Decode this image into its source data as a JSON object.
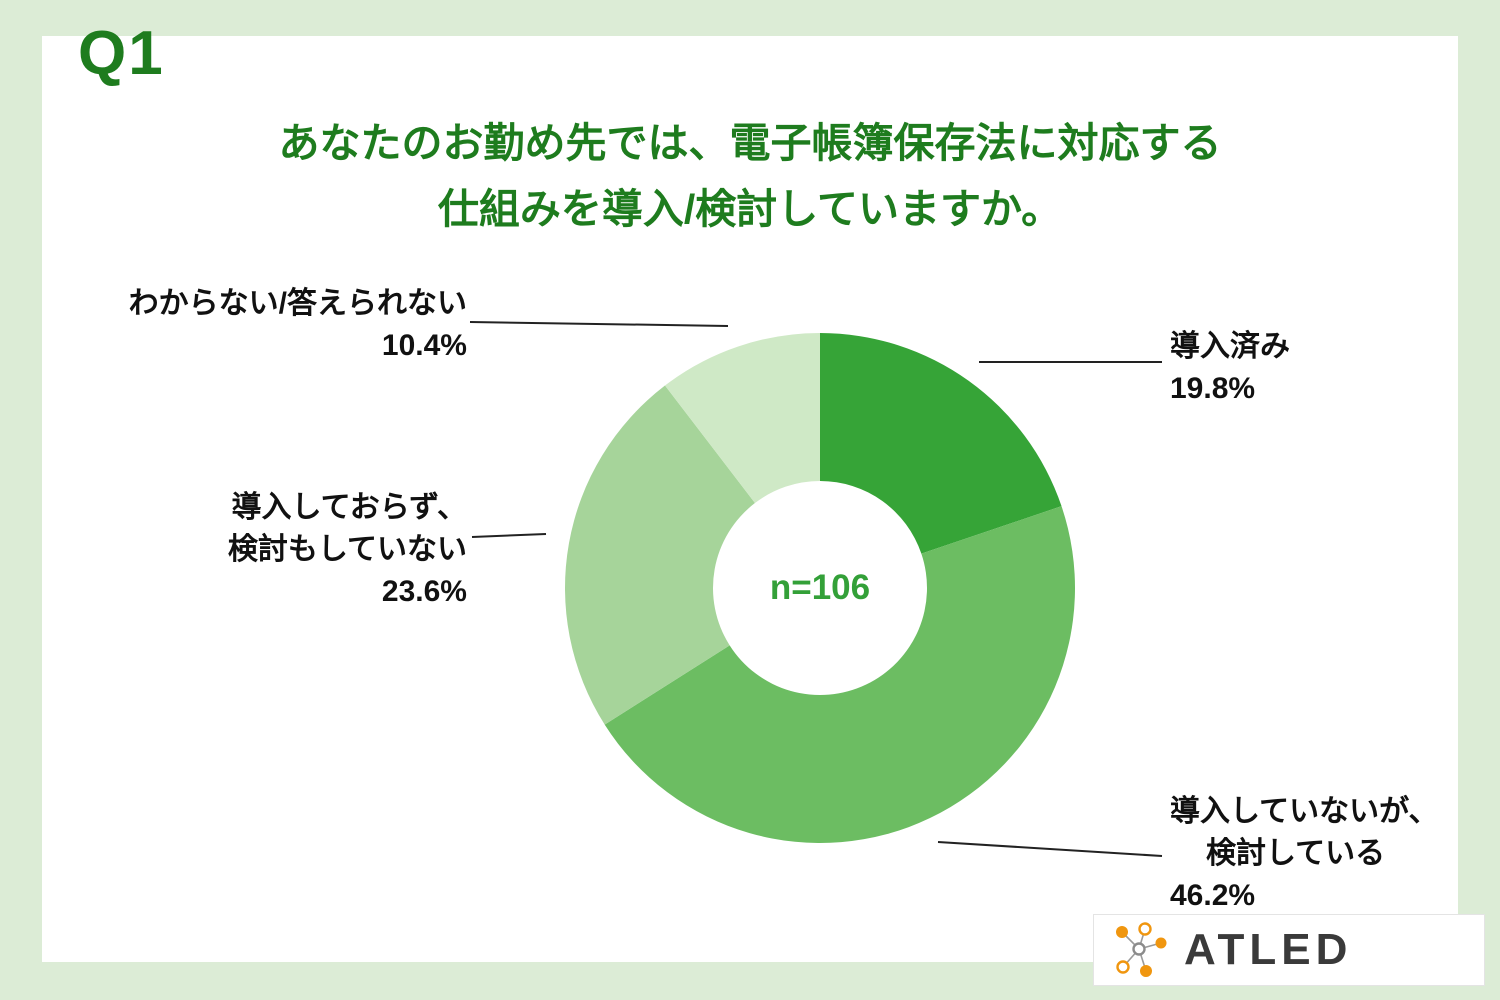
{
  "header": {
    "q_label": "Q1",
    "title_line1": "あなたのお勤め先では、電子帳簿保存法に対応する",
    "title_line2": "仕組みを導入/検討していますか。"
  },
  "chart_data": {
    "type": "pie",
    "donut": true,
    "title": "あなたのお勤め先では、電子帳簿保存法に対応する仕組みを導入/検討していますか。",
    "center_label": "n=106",
    "sample_size": 106,
    "start_angle_deg": 0,
    "direction": "clockwise",
    "slices": [
      {
        "label": "導入済み",
        "value": 19.8,
        "color": "#36a437"
      },
      {
        "label": "導入していないが、検討している",
        "value": 46.2,
        "color": "#6cbd62"
      },
      {
        "label": "導入しておらず、検討もしていない",
        "value": 23.6,
        "color": "#a6d49a"
      },
      {
        "label": "わからない/答えられない",
        "value": 10.4,
        "color": "#cfe9c6"
      }
    ]
  },
  "callouts": {
    "implemented": {
      "label": "導入済み",
      "pct": "19.8%"
    },
    "considering": {
      "label_line1": "導入していないが、",
      "label_line2": "検討している",
      "pct": "46.2%"
    },
    "not_considering": {
      "label_line1": "導入しておらず、",
      "label_line2": "検討もしていない",
      "pct": "23.6%"
    },
    "unknown": {
      "label": "わからない/答えられない",
      "pct": "10.4%"
    }
  },
  "logo": {
    "text": "ATLED",
    "accent_color": "#f0960f"
  },
  "colors": {
    "frame_bg": "#dcecd6",
    "card_bg": "#ffffff",
    "title_green": "#1e7c1e",
    "center_label_green": "#33a038",
    "label_text": "#111111"
  }
}
